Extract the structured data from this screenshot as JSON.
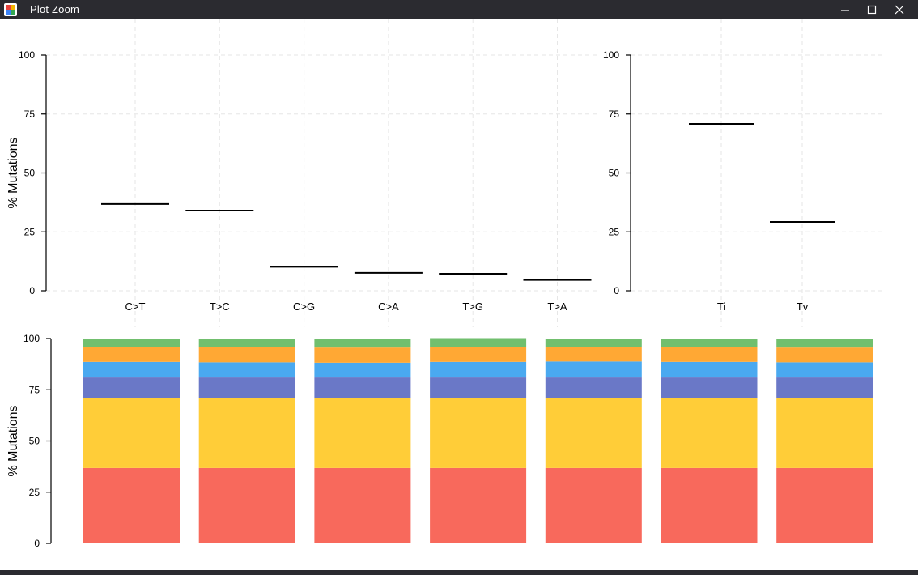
{
  "window": {
    "title": "Plot Zoom",
    "icon": "plot-zoom-app-icon",
    "controls": {
      "minimize": "minimize-icon",
      "maximize": "maximize-icon",
      "close": "close-icon"
    },
    "chrome_color": "#2b2b30"
  },
  "chart_data": [
    {
      "type": "box",
      "ylabel": "% Mutations",
      "ylim": [
        0,
        100
      ],
      "yticks": [
        0,
        25,
        50,
        75,
        100
      ],
      "grid": true,
      "categories": [
        "C>T",
        "T>C",
        "C>G",
        "C>A",
        "T>G",
        "T>A"
      ],
      "values": [
        36.8,
        34.0,
        10.2,
        7.6,
        7.2,
        4.6
      ]
    },
    {
      "type": "box",
      "ylim": [
        0,
        100
      ],
      "yticks": [
        0,
        25,
        50,
        75,
        100
      ],
      "grid": true,
      "categories": [
        "Ti",
        "Tv"
      ],
      "values": [
        70.8,
        29.2
      ]
    },
    {
      "type": "stacked-bar",
      "ylabel": "% Mutations",
      "ylim": [
        0,
        100
      ],
      "yticks": [
        0,
        25,
        50,
        75,
        100
      ],
      "grid": false,
      "bar_count": 7,
      "segment_colors": [
        "#f8695c",
        "#ffcd38",
        "#6a78c7",
        "#4aa9f0",
        "#ffa834",
        "#71bf6e"
      ],
      "series": [
        {
          "values": [
            36.8,
            36.8,
            36.8,
            36.8,
            36.8,
            36.8,
            36.8
          ]
        },
        {
          "values": [
            34.0,
            34.0,
            34.0,
            34.0,
            34.0,
            34.0,
            34.0
          ]
        },
        {
          "values": [
            10.2,
            10.2,
            10.2,
            10.2,
            10.2,
            10.2,
            10.2
          ]
        },
        {
          "values": [
            7.6,
            7.4,
            7.2,
            7.6,
            7.8,
            7.6,
            7.4
          ]
        },
        {
          "values": [
            7.2,
            7.4,
            7.4,
            7.2,
            7.0,
            7.2,
            7.2
          ]
        },
        {
          "values": [
            4.2,
            4.2,
            4.4,
            4.4,
            4.2,
            4.2,
            4.4
          ]
        }
      ]
    }
  ]
}
